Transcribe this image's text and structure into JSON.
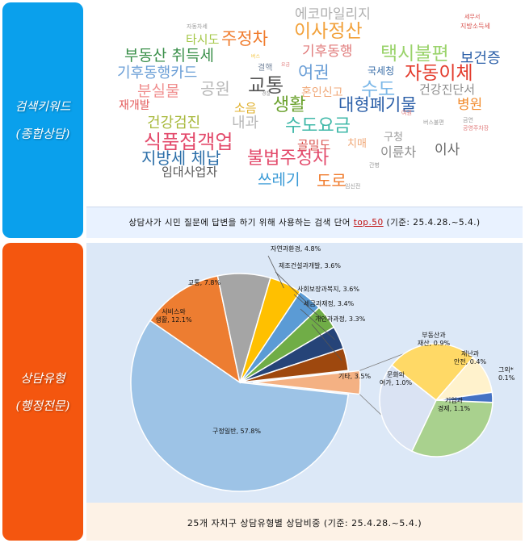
{
  "side_labels": {
    "top": "검색키워드\n(종합상담)",
    "bottom": "상담유형\n(행정전문)"
  },
  "word_cloud": {
    "caption_before": "상담사가 시민 질문에 답변을 하기 위해 사용하는 검색 단어 ",
    "caption_highlight": "top.50",
    "caption_after": " (기준: 25.4.28.~5.4.)",
    "words": [
      {
        "text": "에코마일리지",
        "color": "#b0b0b0"
      },
      {
        "text": "자동차세",
        "color": "#9a9a9a"
      },
      {
        "text": "타시도",
        "color": "#a6c84a"
      },
      {
        "text": "주정차",
        "color": "#f07b2c"
      },
      {
        "text": "이사정산",
        "color": "#f2a13a"
      },
      {
        "text": "세무서",
        "color": "#d9534f"
      },
      {
        "text": "지방소득세",
        "color": "#d9534f"
      },
      {
        "text": "부동산 취득세",
        "color": "#3a8f4a"
      },
      {
        "text": "기후동행",
        "color": "#e07b7b"
      },
      {
        "text": "택시불편",
        "color": "#9ad36b"
      },
      {
        "text": "보건증",
        "color": "#2b5fa8"
      },
      {
        "text": "버스",
        "color": "#f2c23a"
      },
      {
        "text": "기후동행카드",
        "color": "#6a9ed6"
      },
      {
        "text": "결핵",
        "color": "#7a8aa0"
      },
      {
        "text": "요금",
        "color": "#e07b7b"
      },
      {
        "text": "여권",
        "color": "#6a9ed6"
      },
      {
        "text": "국세청",
        "color": "#3a6ea8"
      },
      {
        "text": "자동이체",
        "color": "#e33a2b"
      },
      {
        "text": "분실물",
        "color": "#f08f8f"
      },
      {
        "text": "공원",
        "color": "#b8b8b8"
      },
      {
        "text": "교통",
        "color": "#555555"
      },
      {
        "text": "경찰",
        "color": "#9a9a9a"
      },
      {
        "text": "혼인신고",
        "color": "#f0a878"
      },
      {
        "text": "수도",
        "color": "#7cb8e8"
      },
      {
        "text": "건강진단서",
        "color": "#8e8e8e"
      },
      {
        "text": "재개발",
        "color": "#e35b5b"
      },
      {
        "text": "소음",
        "color": "#e0b02c"
      },
      {
        "text": "생활",
        "color": "#6aa12c"
      },
      {
        "text": "대형폐기물",
        "color": "#2b5fa8"
      },
      {
        "text": "병원",
        "color": "#f28b2c"
      },
      {
        "text": "건강검진",
        "color": "#a7b83a"
      },
      {
        "text": "내과",
        "color": "#b8b8b8"
      },
      {
        "text": "수도요금",
        "color": "#3fb8a8"
      },
      {
        "text": "버스불편",
        "color": "#9a9a9a"
      },
      {
        "text": "금연",
        "color": "#9a9a9a"
      },
      {
        "text": "공영주차장",
        "color": "#e07b7b"
      },
      {
        "text": "여권",
        "color": "#e07b7b"
      },
      {
        "text": "식품접객업",
        "color": "#e34a6b"
      },
      {
        "text": "골밀도",
        "color": "#d9534f"
      },
      {
        "text": "치매",
        "color": "#f0a878"
      },
      {
        "text": "구청",
        "color": "#9a9a9a"
      },
      {
        "text": "지방세 체납",
        "color": "#2b6ea8"
      },
      {
        "text": "불법주정차",
        "color": "#e34a6b"
      },
      {
        "text": "이륜차",
        "color": "#8e8e8e"
      },
      {
        "text": "이사",
        "color": "#666666"
      },
      {
        "text": "임대사업자",
        "color": "#555555"
      },
      {
        "text": "쓰레기",
        "color": "#3a9ad6"
      },
      {
        "text": "도로",
        "color": "#f07b2c"
      },
      {
        "text": "간병",
        "color": "#9a9a9a"
      },
      {
        "text": "임신전",
        "color": "#9a9a9a"
      }
    ]
  },
  "pie": {
    "caption": "25개 자치구 상담유형별 상담비중 (기준: 25.4.28.~5.4.)"
  },
  "chart_data": [
    {
      "type": "pie",
      "title": "",
      "categories": [
        "구정일반",
        "서비스와 생활",
        "교통",
        "자연과환경",
        "제조건설과개발",
        "사회보장과복지",
        "세금과재정",
        "개인과과정",
        "기타"
      ],
      "values": [
        57.8,
        12.1,
        7.8,
        4.8,
        3.6,
        3.6,
        3.4,
        3.3,
        3.5
      ],
      "labels": [
        "구정일반, 57.8%",
        "서비스와\n생활, 12.1%",
        "교통, 7.8%",
        "자연과환경, 4.8%",
        "제조건설과개발, 3.6%",
        "사회보장과복지, 3.6%",
        "세금과재정, 3.4%",
        "개인과과정, 3.3%",
        "기타, 3.5%"
      ],
      "colors": [
        "#9dc3e6",
        "#ed7d31",
        "#a5a5a5",
        "#ffc000",
        "#5b9bd5",
        "#70ad47",
        "#264478",
        "#9e480e",
        "#f4b183"
      ]
    },
    {
      "type": "pie",
      "title": "",
      "categories": [
        "기업과 경제",
        "문화와 여가",
        "부동산과 재산",
        "재난과 안전",
        "그외*"
      ],
      "values": [
        1.1,
        1.0,
        0.9,
        0.4,
        0.1
      ],
      "labels": [
        "기업과\n경제, 1.1%",
        "문화와\n여가, 1.0%",
        "부동산과\n재산, 0.9%",
        "재난과\n안전, 0.4%",
        "그외*\n0.1%"
      ],
      "colors": [
        "#a9d18e",
        "#dae3f3",
        "#ffd966",
        "#fff2cc",
        "#4472c4"
      ]
    }
  ]
}
